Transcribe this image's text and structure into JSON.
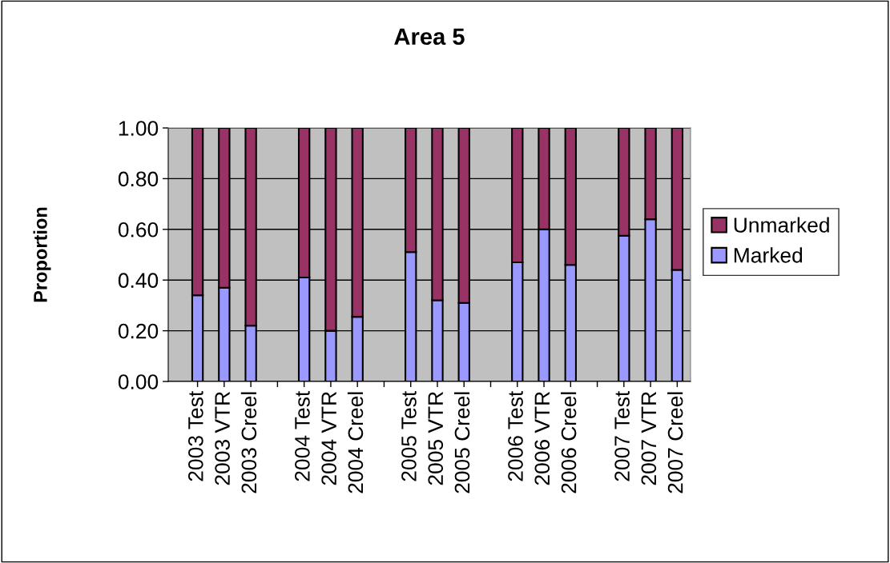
{
  "chart_data": {
    "type": "bar",
    "title": "Area 5",
    "ylabel": "Proportion",
    "stacked": true,
    "categories": [
      "2003 Test",
      "2003 VTR",
      "2003 Creel",
      null,
      "2004 Test",
      "2004 VTR",
      "2004 Creel",
      null,
      "2005 Test",
      "2005 VTR",
      "2005 Creel",
      null,
      "2006 Test",
      "2006 VTR",
      "2006 Creel",
      null,
      "2007 Test",
      "2007 VTR",
      "2007 Creel"
    ],
    "series": [
      {
        "name": "Marked",
        "color": "#9999ff",
        "values": [
          0.34,
          0.37,
          0.22,
          null,
          0.41,
          0.2,
          0.255,
          null,
          0.51,
          0.32,
          0.31,
          null,
          0.47,
          0.6,
          0.46,
          null,
          0.575,
          0.64,
          0.44
        ]
      },
      {
        "name": "Unmarked",
        "color": "#993366",
        "values": [
          0.66,
          0.63,
          0.78,
          null,
          0.59,
          0.8,
          0.745,
          null,
          0.49,
          0.68,
          0.69,
          null,
          0.53,
          0.4,
          0.54,
          null,
          0.425,
          0.36,
          0.56
        ]
      }
    ],
    "ylim": [
      0,
      1
    ],
    "yticks": [
      {
        "value": 0,
        "label": "0.00"
      },
      {
        "value": 0.2,
        "label": "0.20"
      },
      {
        "value": 0.4,
        "label": "0.40"
      },
      {
        "value": 0.6,
        "label": "0.60"
      },
      {
        "value": 0.8,
        "label": "0.80"
      },
      {
        "value": 1,
        "label": "1.00"
      }
    ],
    "grid": "y",
    "legend": "right"
  }
}
